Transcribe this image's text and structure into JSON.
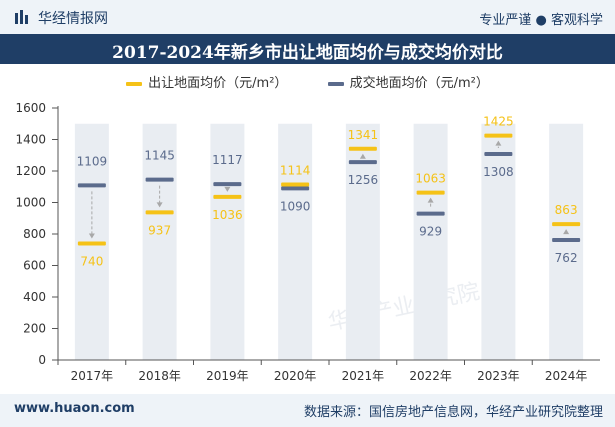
{
  "header": {
    "brand": "华经情报网",
    "tagline": "专业严谨 ● 客观科学"
  },
  "footer": {
    "website": "www.huaon.com",
    "source": "数据来源：国信房地产信息网，华经产业研究院整理"
  },
  "watermark": "华经产业研究院",
  "colors": {
    "supply": "#f5c217",
    "deal": "#5b6b8c",
    "column": "#e9edf2",
    "header_bg": "#1f3e66"
  },
  "chart_data": {
    "type": "bar",
    "title": "2017-2024年新乡市出让地面均价与成交均价对比",
    "categories": [
      "2017年",
      "2018年",
      "2019年",
      "2020年",
      "2021年",
      "2022年",
      "2023年",
      "2024年"
    ],
    "series": [
      {
        "name": "出让地面均价（元/m²）",
        "values": [
          740,
          937,
          1036,
          1114,
          1341,
          1063,
          1425,
          863
        ]
      },
      {
        "name": "成交地面均价（元/m²）",
        "values": [
          1109,
          1145,
          1117,
          1090,
          1256,
          929,
          1308,
          762
        ]
      }
    ],
    "yticks": [
      "0",
      "200",
      "400",
      "600",
      "800",
      "1000",
      "1200",
      "1400",
      "1600"
    ],
    "ylim": [
      0,
      1600
    ],
    "legend_position": "top-center"
  }
}
